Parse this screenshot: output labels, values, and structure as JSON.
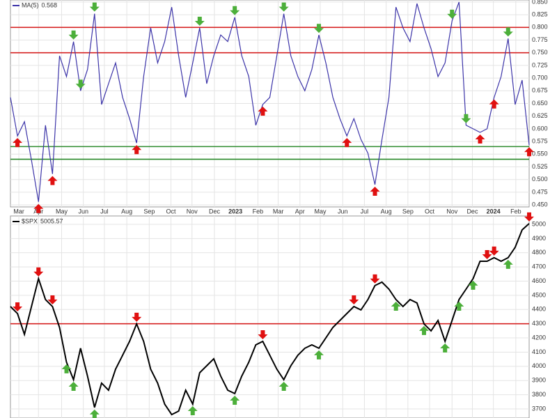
{
  "chart_data": [
    {
      "type": "line",
      "series": [
        {
          "name": "MA(5)",
          "last_value": 0.568,
          "color": "#3b33a8",
          "values": [
            0.662,
            0.586,
            0.614,
            0.538,
            0.456,
            0.607,
            0.511,
            0.744,
            0.703,
            0.772,
            0.675,
            0.717,
            0.827,
            0.648,
            0.689,
            0.73,
            0.662,
            0.62,
            0.572,
            0.703,
            0.799,
            0.73,
            0.772,
            0.84,
            0.744,
            0.662,
            0.73,
            0.799,
            0.689,
            0.744,
            0.785,
            0.772,
            0.82,
            0.744,
            0.703,
            0.607,
            0.648,
            0.662,
            0.744,
            0.827,
            0.744,
            0.703,
            0.675,
            0.717,
            0.785,
            0.73,
            0.662,
            0.62,
            0.586,
            0.62,
            0.579,
            0.552,
            0.49,
            0.579,
            0.662,
            0.84,
            0.799,
            0.772,
            0.847,
            0.799,
            0.758,
            0.703,
            0.73,
            0.813,
            0.85,
            0.607,
            0.6,
            0.593,
            0.6,
            0.662,
            0.703,
            0.778,
            0.648,
            0.696,
            0.568
          ]
        }
      ],
      "xlim": [
        0,
        74
      ],
      "ylim": [
        0.446,
        0.854
      ],
      "yticks": [
        {
          "value": 0.45,
          "label": "0.450"
        },
        {
          "value": 0.475,
          "label": "0.475"
        },
        {
          "value": 0.5,
          "label": "0.500"
        },
        {
          "value": 0.525,
          "label": "0.525"
        },
        {
          "value": 0.55,
          "label": "0.550"
        },
        {
          "value": 0.575,
          "label": "0.575"
        },
        {
          "value": 0.6,
          "label": "0.600"
        },
        {
          "value": 0.625,
          "label": "0.625"
        },
        {
          "value": 0.65,
          "label": "0.650"
        },
        {
          "value": 0.675,
          "label": "0.675"
        },
        {
          "value": 0.7,
          "label": "0.700"
        },
        {
          "value": 0.725,
          "label": "0.725"
        },
        {
          "value": 0.75,
          "label": "0.750"
        },
        {
          "value": 0.775,
          "label": "0.775"
        },
        {
          "value": 0.8,
          "label": "0.800"
        },
        {
          "value": 0.825,
          "label": "0.825"
        },
        {
          "value": 0.85,
          "label": "0.850"
        }
      ],
      "xticks": [
        {
          "value": 1.2,
          "label": "Mar"
        },
        {
          "value": 4,
          "label": "Apr"
        },
        {
          "value": 7.3,
          "label": "May"
        },
        {
          "value": 10.4,
          "label": "Jun"
        },
        {
          "value": 13.4,
          "label": "Jul"
        },
        {
          "value": 16.6,
          "label": "Aug"
        },
        {
          "value": 19.8,
          "label": "Sep"
        },
        {
          "value": 22.9,
          "label": "Oct"
        },
        {
          "value": 25.9,
          "label": "Nov"
        },
        {
          "value": 29.1,
          "label": "Dec"
        },
        {
          "value": 32.1,
          "label": "2023"
        },
        {
          "value": 35.3,
          "label": "Feb"
        },
        {
          "value": 38.2,
          "label": "Mar"
        },
        {
          "value": 41.3,
          "label": "Apr"
        },
        {
          "value": 44.2,
          "label": "May"
        },
        {
          "value": 47.4,
          "label": "Jun"
        },
        {
          "value": 50.5,
          "label": "Jul"
        },
        {
          "value": 53.6,
          "label": "Aug"
        },
        {
          "value": 56.7,
          "label": "Sep"
        },
        {
          "value": 59.8,
          "label": "Oct"
        },
        {
          "value": 63,
          "label": "Nov"
        },
        {
          "value": 65.9,
          "label": "Dec"
        },
        {
          "value": 68.9,
          "label": "2024"
        },
        {
          "value": 72.1,
          "label": "Feb"
        }
      ],
      "hlines": [
        {
          "value": 0.8,
          "color": "#d62020"
        },
        {
          "value": 0.75,
          "color": "#d62020"
        },
        {
          "value": 0.565,
          "color": "#2a8a2a"
        },
        {
          "value": 0.54,
          "color": "#2a8a2a"
        }
      ],
      "grid": true
    },
    {
      "type": "line",
      "series": [
        {
          "name": "$SPX",
          "last_value": 5005.57,
          "color": "#000000",
          "values": [
            4421,
            4372,
            4225,
            4421,
            4618,
            4470,
            4421,
            4274,
            4029,
            3906,
            4127,
            3931,
            3710,
            3882,
            3832,
            3980,
            4078,
            4176,
            4299,
            4176,
            3980,
            3882,
            3734,
            3660,
            3685,
            3832,
            3734,
            3955,
            4004,
            4053,
            3931,
            3832,
            3808,
            3931,
            4029,
            4151,
            4176,
            4078,
            3980,
            3906,
            4004,
            4078,
            4127,
            4151,
            4127,
            4200,
            4274,
            4323,
            4372,
            4421,
            4397,
            4470,
            4569,
            4593,
            4544,
            4470,
            4421,
            4470,
            4446,
            4299,
            4250,
            4323,
            4176,
            4323,
            4470,
            4544,
            4618,
            4740,
            4740,
            4765,
            4740,
            4765,
            4838,
            4961,
            5005.57
          ]
        }
      ],
      "xlim": [
        0,
        74
      ],
      "ylim": [
        3636,
        5059
      ],
      "yticks": [
        3700,
        3800,
        3900,
        4000,
        4100,
        4200,
        4300,
        4400,
        4500,
        4600,
        4700,
        4800,
        4900,
        5000
      ],
      "hlines": [
        {
          "value": 4300,
          "color": "#d62020"
        }
      ],
      "grid": true
    }
  ]
}
